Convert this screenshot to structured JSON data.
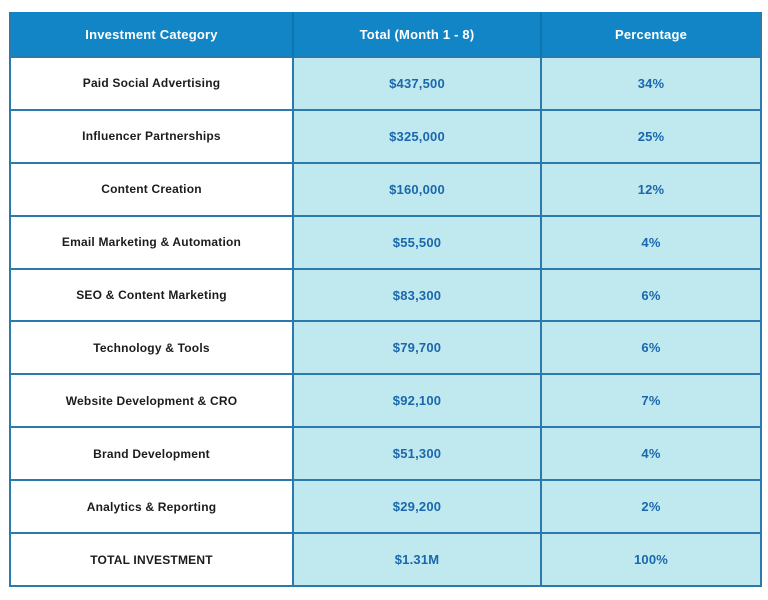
{
  "chart_data": {
    "type": "table",
    "columns": [
      "Investment Category",
      "Total (Month 1 - 8)",
      "Percentage"
    ],
    "rows": [
      [
        "Paid Social Advertising",
        "$437,500",
        "34%"
      ],
      [
        "Influencer Partnerships",
        "$325,000",
        "25%"
      ],
      [
        "Content Creation",
        "$160,000",
        "12%"
      ],
      [
        "Email Marketing & Automation",
        "$55,500",
        "4%"
      ],
      [
        "SEO & Content Marketing",
        "$83,300",
        "6%"
      ],
      [
        "Technology & Tools",
        "$79,700",
        "6%"
      ],
      [
        "Website Development & CRO",
        "$92,100",
        "7%"
      ],
      [
        "Brand Development",
        "$51,300",
        "4%"
      ],
      [
        "Analytics & Reporting",
        "$29,200",
        "2%"
      ],
      [
        "TOTAL INVESTMENT",
        "$1.31M",
        "100%"
      ]
    ]
  },
  "colors": {
    "header_bg": "#1185c6",
    "header_text": "#ffffff",
    "header_separator": "#0e74ae",
    "value_cell_bg": "#c0e9ef",
    "category_cell_bg": "#ffffff",
    "category_text": "#1c1c1c",
    "value_text": "#1a67ad",
    "border": "#2b7aad",
    "page_bg": "#ffffff"
  }
}
